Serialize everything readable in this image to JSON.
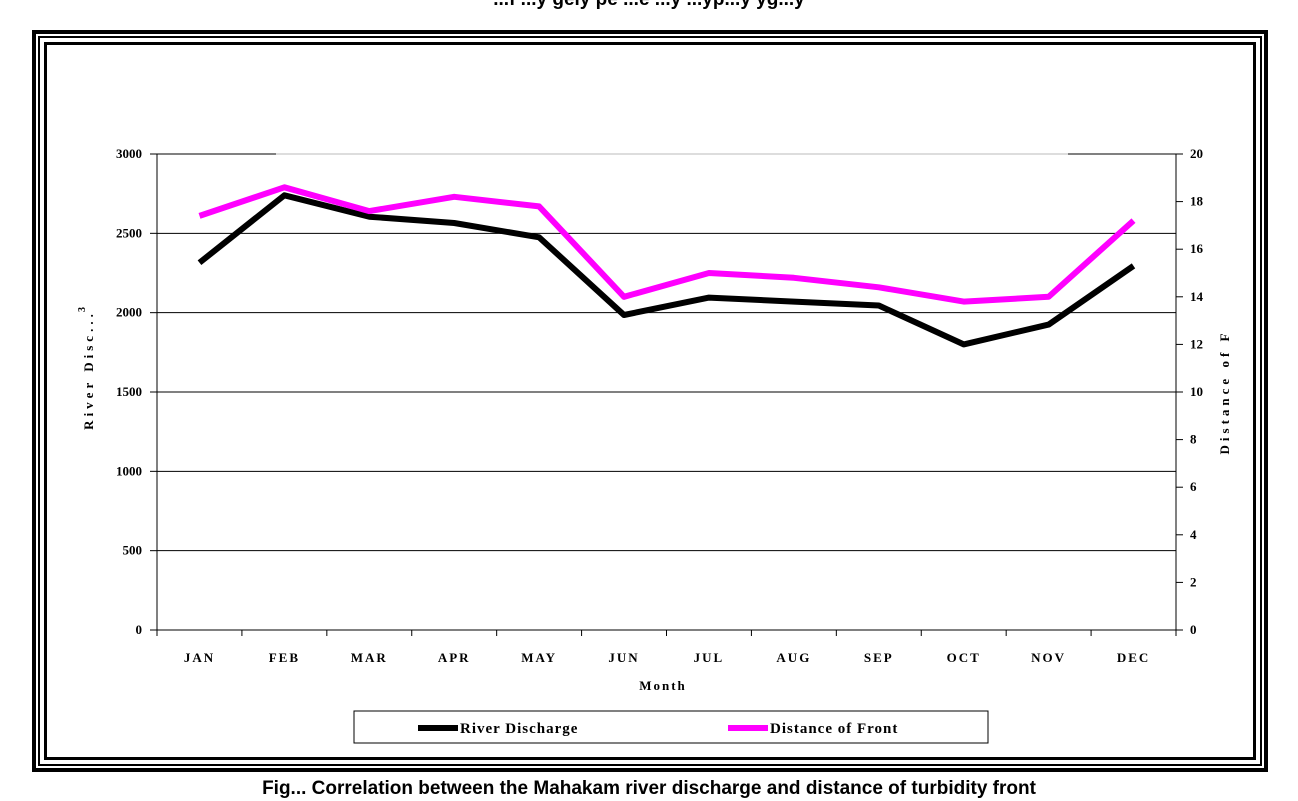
{
  "page": {
    "top_caption": "...f ...y gely pe ...e ...y ...yp...y yg...y",
    "bottom_caption": "Fig... Correlation between the Mahakam river discharge and distance of turbidity front"
  },
  "chart_data": {
    "type": "line",
    "categories": [
      "JAN",
      "FEB",
      "MAR",
      "APR",
      "MAY",
      "JUN",
      "JUL",
      "AUG",
      "SEP",
      "OCT",
      "NOV",
      "DEC"
    ],
    "xlabel": "Month",
    "ylabel": "River Disc...",
    "ylabel_superscript": "3",
    "ylabel_right": "Distance of F",
    "ylim": [
      0,
      3000
    ],
    "ylim_right": [
      0,
      20
    ],
    "yticks": [
      0,
      500,
      1000,
      1500,
      2000,
      2500,
      3000
    ],
    "yticks_right": [
      0,
      2,
      4,
      6,
      8,
      10,
      12,
      14,
      16,
      18,
      20
    ],
    "grid": true,
    "legend_position": "bottom",
    "series": [
      {
        "name": "River Discharge",
        "axis": "left",
        "color": "#000000",
        "values": [
          2315,
          2740,
          2605,
          2565,
          2475,
          1985,
          2095,
          2070,
          2045,
          1800,
          1925,
          2295
        ]
      },
      {
        "name": "Distance of Front",
        "axis": "right",
        "color": "#ff00ff",
        "values": [
          17.4,
          18.6,
          17.6,
          18.2,
          17.8,
          14.0,
          15.0,
          14.8,
          14.4,
          13.8,
          14.0,
          17.2
        ]
      }
    ]
  }
}
